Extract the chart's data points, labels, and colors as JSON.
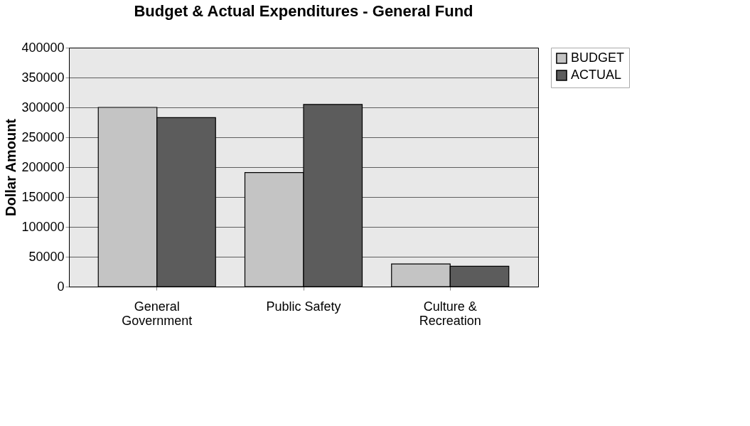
{
  "chart_data": {
    "type": "bar",
    "title": "Budget & Actual Expenditures - General Fund",
    "ylabel": "Dollar Amount",
    "categories": [
      "General\nGovernment",
      "Public Safety",
      "Culture &\nRecreation"
    ],
    "series": [
      {
        "name": "BUDGET",
        "color": "#c4c4c4",
        "values": [
          300000,
          191000,
          38000
        ]
      },
      {
        "name": "ACTUAL",
        "color": "#5c5c5c",
        "values": [
          283000,
          305000,
          34000
        ]
      }
    ],
    "ylim": [
      0,
      400000
    ],
    "yticks": [
      0,
      50000,
      100000,
      150000,
      200000,
      250000,
      300000,
      350000,
      400000
    ],
    "grid": "y",
    "legend": "right"
  }
}
